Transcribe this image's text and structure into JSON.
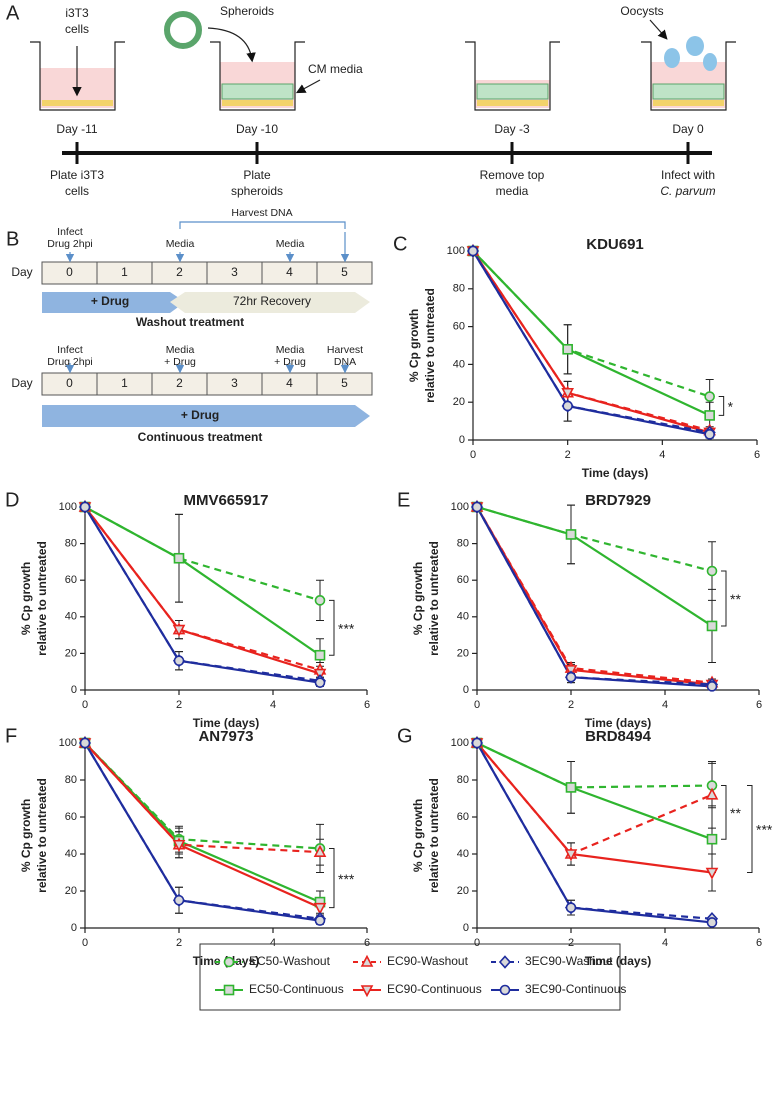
{
  "panel_a": {
    "label": "A",
    "callouts": {
      "cells": [
        "i3T3",
        "cells"
      ],
      "spheroids": "Spheroids",
      "media": "CM media",
      "oocysts": "Oocysts"
    },
    "wells": [
      {
        "day": "Day -11",
        "caption": [
          "Plate i3T3",
          "cells"
        ]
      },
      {
        "day": "Day -10",
        "caption": [
          "Plate",
          "spheroids"
        ]
      },
      {
        "day": "Day -3",
        "caption": [
          "Remove top",
          "media"
        ]
      },
      {
        "day": "Day 0",
        "caption": [
          "Infect with",
          "C. parvum"
        ]
      }
    ]
  },
  "panel_b": {
    "label": "B",
    "day": "Day",
    "days": [
      0,
      1,
      2,
      3,
      4,
      5
    ],
    "washout": {
      "infect": [
        "Infect",
        "Drug 2hpi"
      ],
      "media_1": "Media",
      "media_2": "Media",
      "harvest": "Harvest DNA",
      "drug": "+ Drug",
      "recovery": "72hr Recovery",
      "caption": "Washout treatment"
    },
    "continuous": {
      "infect": [
        "Infect",
        "Drug 2hpi"
      ],
      "media_1": [
        "Media",
        "+ Drug"
      ],
      "media_2": [
        "Media",
        "+ Drug"
      ],
      "harvest": [
        "Harvest",
        "DNA"
      ],
      "drug": "+ Drug",
      "caption": "Continuous treatment"
    }
  },
  "chart_data": {
    "type": "line",
    "x": [
      0,
      2,
      5
    ],
    "xlim": [
      0,
      6
    ],
    "xticks": [
      0,
      2,
      4,
      6
    ],
    "ylim": [
      0,
      100
    ],
    "yticks": [
      0,
      20,
      40,
      60,
      80,
      100
    ],
    "xlabel": "Time (days)",
    "ylabel": [
      "% Cp growth",
      "relative to untreated"
    ],
    "series": [
      {
        "name": "EC50-Washout",
        "color": "#2fb52f",
        "marker": "circle",
        "linestyle": "dashed"
      },
      {
        "name": "EC50-Continuous",
        "color": "#2fb52f",
        "marker": "square",
        "linestyle": "solid"
      },
      {
        "name": "EC90-Washout",
        "color": "#e8231e",
        "marker": "triangle-up",
        "linestyle": "dashed"
      },
      {
        "name": "EC90-Continuous",
        "color": "#e8231e",
        "marker": "triangle-down",
        "linestyle": "solid"
      },
      {
        "name": "3EC90-Washout",
        "color": "#1f2d9e",
        "marker": "diamond",
        "linestyle": "dashed"
      },
      {
        "name": "3EC90-Continuous",
        "color": "#1f2d9e",
        "marker": "circle",
        "linestyle": "solid"
      }
    ],
    "panels": [
      {
        "label": "C",
        "title": "KDU691",
        "series": [
          {
            "values": [
              100,
              48,
              23
            ],
            "errors": [
              0,
              13,
              9
            ]
          },
          {
            "values": [
              100,
              48,
              13
            ],
            "errors": [
              0,
              13,
              7
            ]
          },
          {
            "values": [
              100,
              25,
              5
            ],
            "errors": [
              0,
              6,
              2
            ]
          },
          {
            "values": [
              100,
              25,
              4
            ],
            "errors": [
              0,
              6,
              2
            ]
          },
          {
            "values": [
              100,
              18,
              4
            ],
            "errors": [
              0,
              8,
              2
            ]
          },
          {
            "values": [
              100,
              18,
              3
            ],
            "errors": [
              0,
              8,
              2
            ]
          }
        ],
        "annotations": [
          {
            "text": "*",
            "between": [
              "EC50-Washout",
              "EC50-Continuous"
            ]
          }
        ]
      },
      {
        "label": "D",
        "title": "MMV665917",
        "series": [
          {
            "values": [
              100,
              72,
              49
            ],
            "errors": [
              0,
              24,
              11
            ]
          },
          {
            "values": [
              100,
              72,
              19
            ],
            "errors": [
              0,
              24,
              9
            ]
          },
          {
            "values": [
              100,
              33,
              11
            ],
            "errors": [
              0,
              5,
              4
            ]
          },
          {
            "values": [
              100,
              33,
              9
            ],
            "errors": [
              0,
              5,
              4
            ]
          },
          {
            "values": [
              100,
              16,
              5
            ],
            "errors": [
              0,
              5,
              2
            ]
          },
          {
            "values": [
              100,
              16,
              4
            ],
            "errors": [
              0,
              5,
              2
            ]
          }
        ],
        "annotations": [
          {
            "text": "***",
            "between": [
              "EC50-Washout",
              "EC50-Continuous"
            ]
          }
        ]
      },
      {
        "label": "E",
        "title": "BRD7929",
        "series": [
          {
            "values": [
              100,
              85,
              65
            ],
            "errors": [
              0,
              16,
              16
            ]
          },
          {
            "values": [
              100,
              85,
              35
            ],
            "errors": [
              0,
              16,
              20
            ]
          },
          {
            "values": [
              100,
              12,
              4
            ],
            "errors": [
              0,
              3,
              2
            ]
          },
          {
            "values": [
              100,
              11,
              3
            ],
            "errors": [
              0,
              3,
              2
            ]
          },
          {
            "values": [
              100,
              7,
              3
            ],
            "errors": [
              0,
              3,
              1
            ]
          },
          {
            "values": [
              100,
              7,
              2
            ],
            "errors": [
              0,
              3,
              1
            ]
          }
        ],
        "annotations": [
          {
            "text": "**",
            "between": [
              "EC50-Washout",
              "EC50-Continuous"
            ]
          }
        ]
      },
      {
        "label": "F",
        "title": "AN7973",
        "series": [
          {
            "values": [
              100,
              48,
              43
            ],
            "errors": [
              0,
              7,
              13
            ]
          },
          {
            "values": [
              100,
              47,
              14
            ],
            "errors": [
              0,
              7,
              6
            ]
          },
          {
            "values": [
              100,
              45,
              41
            ],
            "errors": [
              0,
              7,
              7
            ]
          },
          {
            "values": [
              100,
              45,
              11
            ],
            "errors": [
              0,
              7,
              5
            ]
          },
          {
            "values": [
              100,
              15,
              5
            ],
            "errors": [
              0,
              7,
              2
            ]
          },
          {
            "values": [
              100,
              15,
              4
            ],
            "errors": [
              0,
              7,
              2
            ]
          }
        ],
        "annotations": [
          {
            "text": "***",
            "between": [
              "EC50-Washout",
              "EC90-Continuous"
            ]
          }
        ]
      },
      {
        "label": "G",
        "title": "BRD8494",
        "series": [
          {
            "values": [
              100,
              76,
              77
            ],
            "errors": [
              0,
              14,
              12
            ]
          },
          {
            "values": [
              100,
              76,
              48
            ],
            "errors": [
              0,
              14,
              18
            ]
          },
          {
            "values": [
              100,
              40,
              72
            ],
            "errors": [
              0,
              6,
              18
            ]
          },
          {
            "values": [
              100,
              40,
              30
            ],
            "errors": [
              0,
              6,
              10
            ]
          },
          {
            "values": [
              100,
              11,
              5
            ],
            "errors": [
              0,
              4,
              1
            ]
          },
          {
            "values": [
              100,
              11,
              3
            ],
            "errors": [
              0,
              4,
              1
            ]
          }
        ],
        "annotations": [
          {
            "text": "**",
            "between": [
              "EC50-Washout",
              "EC50-Continuous"
            ]
          },
          {
            "text": "***",
            "between": [
              "EC50-Washout",
              "EC90-Continuous"
            ]
          }
        ]
      }
    ]
  }
}
